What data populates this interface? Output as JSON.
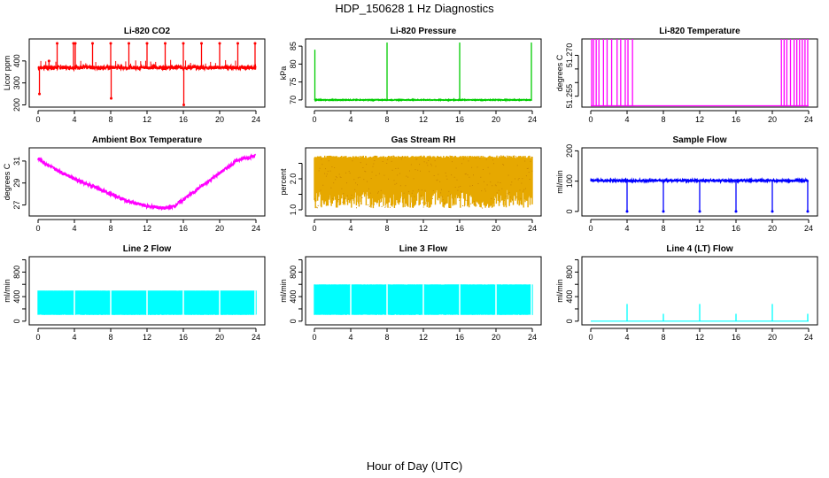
{
  "figure": {
    "title": "HDP_150628  1 Hz Diagnostics",
    "xlabel": "Hour of Day (UTC)"
  },
  "chart_data": [
    {
      "id": "co2",
      "type": "line",
      "title": "Li-820 CO2",
      "ylabel": "Licor ppm",
      "color": "#ff0000",
      "xlim": [
        0,
        24
      ],
      "ylim": [
        190,
        500
      ],
      "xticks": [
        0,
        4,
        8,
        12,
        16,
        20,
        24
      ],
      "yticks": [
        200,
        300,
        400
      ],
      "baseline": 370,
      "noise": 8,
      "series": [
        {
          "values": [
            [
              0,
              370
            ],
            [
              4,
              370
            ],
            [
              8,
              370
            ],
            [
              12,
              370
            ],
            [
              16,
              370
            ],
            [
              20,
              370
            ],
            [
              24,
              370
            ]
          ]
        }
      ],
      "spikes": [
        [
          0.15,
          250
        ],
        [
          1.2,
          400
        ],
        [
          2.1,
          480
        ],
        [
          3.9,
          480
        ],
        [
          4.1,
          480
        ],
        [
          6.0,
          480
        ],
        [
          8.0,
          480
        ],
        [
          8.05,
          230
        ],
        [
          10.0,
          480
        ],
        [
          12.0,
          480
        ],
        [
          14.0,
          480
        ],
        [
          16.0,
          480
        ],
        [
          16.05,
          200
        ],
        [
          18.0,
          480
        ],
        [
          20.0,
          480
        ],
        [
          22.0,
          480
        ],
        [
          23.9,
          480
        ]
      ]
    },
    {
      "id": "pressure",
      "type": "line",
      "title": "Li-820 Pressure",
      "ylabel": "kPa",
      "color": "#00cc00",
      "xlim": [
        0,
        24
      ],
      "ylim": [
        68,
        87
      ],
      "xticks": [
        0,
        4,
        8,
        12,
        16,
        20,
        24
      ],
      "yticks": [
        70,
        75,
        80,
        85
      ],
      "baseline": 70,
      "noise": 0.1,
      "series": [
        {
          "values": [
            [
              0,
              70
            ],
            [
              24,
              70
            ]
          ]
        }
      ],
      "spikes": [
        [
          0.05,
          84
        ],
        [
          8.0,
          86
        ],
        [
          16.0,
          86
        ],
        [
          23.9,
          86
        ]
      ]
    },
    {
      "id": "temperature",
      "type": "line",
      "title": "Li-820 Temperature",
      "ylabel": "degrees C",
      "color": "#ff00ff",
      "xlim": [
        0,
        24
      ],
      "ylim": [
        51.251,
        51.276
      ],
      "xticks": [
        0,
        4,
        8,
        12,
        16,
        20,
        24
      ],
      "yticks": [
        51.255,
        51.26,
        51.265,
        51.27
      ],
      "ytickLabels": [
        "51.255",
        "",
        "",
        "51.270"
      ],
      "baseline": 51.2515,
      "noise": 0,
      "series": [
        {
          "values": [
            [
              0,
              51.2515
            ],
            [
              24,
              51.2515
            ]
          ]
        }
      ],
      "spikes": [
        [
          0.1,
          51.276
        ],
        [
          0.3,
          51.276
        ],
        [
          0.6,
          51.276
        ],
        [
          0.9,
          51.276
        ],
        [
          1.4,
          51.276
        ],
        [
          1.8,
          51.276
        ],
        [
          2.3,
          51.276
        ],
        [
          2.9,
          51.276
        ],
        [
          3.3,
          51.276
        ],
        [
          3.8,
          51.276
        ],
        [
          4.1,
          51.276
        ],
        [
          4.6,
          51.276
        ],
        [
          21.0,
          51.276
        ],
        [
          21.3,
          51.276
        ],
        [
          21.6,
          51.276
        ],
        [
          22.0,
          51.276
        ],
        [
          22.4,
          51.276
        ],
        [
          22.7,
          51.276
        ],
        [
          23.0,
          51.276
        ],
        [
          23.3,
          51.276
        ],
        [
          23.6,
          51.276
        ],
        [
          23.9,
          51.276
        ]
      ]
    },
    {
      "id": "ambient",
      "type": "line",
      "title": "Ambient Box Temperature",
      "ylabel": "degrees C",
      "color": "#ff00ff",
      "xlim": [
        0,
        24
      ],
      "ylim": [
        26,
        32.2
      ],
      "xticks": [
        0,
        4,
        8,
        12,
        16,
        20,
        24
      ],
      "yticks": [
        27,
        29,
        31
      ],
      "noise": 0.15,
      "series": [
        {
          "values": [
            [
              0,
              31.2
            ],
            [
              2,
              30.2
            ],
            [
              4,
              29.4
            ],
            [
              6,
              28.7
            ],
            [
              8,
              28.0
            ],
            [
              10,
              27.3
            ],
            [
              12,
              26.9
            ],
            [
              14,
              26.7
            ],
            [
              15,
              26.9
            ],
            [
              16,
              27.5
            ],
            [
              18,
              28.7
            ],
            [
              20,
              29.9
            ],
            [
              22,
              31.1
            ],
            [
              24,
              31.5
            ]
          ]
        }
      ],
      "spikes": []
    },
    {
      "id": "rh",
      "type": "band",
      "title": "Gas Stream RH",
      "ylabel": "percent",
      "color": "#e6a800",
      "xlim": [
        0,
        24
      ],
      "ylim": [
        0.8,
        3.0
      ],
      "xticks": [
        0,
        4,
        8,
        12,
        16,
        20,
        24
      ],
      "yticks": [
        1.0,
        1.5,
        2.0,
        2.5
      ],
      "ytickLabels": [
        "1.0",
        "",
        "2.0",
        ""
      ],
      "band": [
        1.05,
        2.75
      ],
      "series": [
        {
          "values": [
            [
              0,
              1.05
            ],
            [
              24,
              2.75
            ]
          ]
        }
      ],
      "spikes": []
    },
    {
      "id": "sample",
      "type": "line",
      "title": "Sample Flow",
      "ylabel": "ml/min",
      "color": "#0000ff",
      "xlim": [
        0,
        24
      ],
      "ylim": [
        -15,
        210
      ],
      "xticks": [
        0,
        4,
        8,
        12,
        16,
        20,
        24
      ],
      "yticks": [
        0,
        100,
        200
      ],
      "baseline": 102,
      "noise": 3,
      "series": [
        {
          "values": [
            [
              0,
              102
            ],
            [
              24,
              102
            ]
          ]
        }
      ],
      "spikes": [
        [
          4.0,
          0
        ],
        [
          8.0,
          0
        ],
        [
          12.0,
          0
        ],
        [
          16.0,
          0
        ],
        [
          20.0,
          0
        ],
        [
          23.9,
          0
        ]
      ]
    },
    {
      "id": "line2",
      "type": "band",
      "title": "Line 2 Flow",
      "ylabel": "ml/min",
      "color": "#00ffff",
      "xlim": [
        0,
        24
      ],
      "ylim": [
        -60,
        1050
      ],
      "xticks": [
        0,
        4,
        8,
        12,
        16,
        20,
        24
      ],
      "yticks": [
        0,
        200,
        400,
        600,
        800,
        1000
      ],
      "ytickLabels": [
        "0",
        "",
        "400",
        "",
        "800",
        ""
      ],
      "band": [
        100,
        500
      ],
      "series": [
        {
          "values": [
            [
              0,
              100
            ],
            [
              24,
              500
            ]
          ]
        }
      ],
      "spikes": [
        [
          4.0,
          0
        ],
        [
          8.0,
          0
        ],
        [
          12.0,
          0
        ],
        [
          16.0,
          0
        ],
        [
          20.0,
          0
        ],
        [
          23.9,
          0
        ]
      ]
    },
    {
      "id": "line3",
      "type": "band",
      "title": "Line 3 Flow",
      "ylabel": "ml/min",
      "color": "#00ffff",
      "xlim": [
        0,
        24
      ],
      "ylim": [
        -60,
        1050
      ],
      "xticks": [
        0,
        4,
        8,
        12,
        16,
        20,
        24
      ],
      "yticks": [
        0,
        200,
        400,
        600,
        800,
        1000
      ],
      "ytickLabels": [
        "0",
        "",
        "400",
        "",
        "800",
        ""
      ],
      "band": [
        100,
        600
      ],
      "series": [
        {
          "values": [
            [
              0,
              100
            ],
            [
              24,
              600
            ]
          ]
        }
      ],
      "spikes": [
        [
          4.0,
          0
        ],
        [
          8.0,
          0
        ],
        [
          12.0,
          0
        ],
        [
          16.0,
          0
        ],
        [
          20.0,
          0
        ],
        [
          23.9,
          0
        ]
      ]
    },
    {
      "id": "line4",
      "type": "line",
      "title": "Line 4 (LT) Flow",
      "ylabel": "ml/min",
      "color": "#00ffff",
      "xlim": [
        0,
        24
      ],
      "ylim": [
        -60,
        1050
      ],
      "xticks": [
        0,
        4,
        8,
        12,
        16,
        20,
        24
      ],
      "yticks": [
        0,
        200,
        400,
        600,
        800,
        1000
      ],
      "ytickLabels": [
        "0",
        "",
        "400",
        "",
        "800",
        ""
      ],
      "baseline": 0,
      "noise": 0,
      "series": [
        {
          "values": [
            [
              0,
              0
            ],
            [
              24,
              0
            ]
          ]
        }
      ],
      "spikes": [
        [
          4.0,
          280
        ],
        [
          8.0,
          120
        ],
        [
          12.0,
          280
        ],
        [
          16.0,
          120
        ],
        [
          20.0,
          280
        ],
        [
          23.9,
          120
        ]
      ]
    }
  ]
}
